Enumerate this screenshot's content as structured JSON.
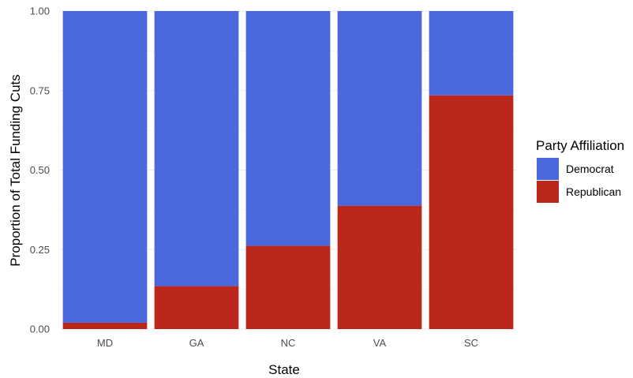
{
  "chart_data": {
    "type": "bar",
    "stacked": true,
    "categories": [
      "MD",
      "GA",
      "NC",
      "VA",
      "SC"
    ],
    "series": [
      {
        "name": "Republican",
        "color": "#bb271a",
        "values": [
          0.02,
          0.135,
          0.262,
          0.388,
          0.735
        ]
      },
      {
        "name": "Democrat",
        "color": "#4a68db",
        "values": [
          0.98,
          0.865,
          0.738,
          0.612,
          0.265
        ]
      }
    ],
    "xlabel": "State",
    "ylabel": "Proportion of Total Funding Cuts",
    "ylim": [
      0,
      1
    ],
    "yticks": [
      "0.00",
      "0.25",
      "0.50",
      "0.75",
      "1.00"
    ],
    "grid": true,
    "legend": {
      "title": "Party Affiliation",
      "placement": "right",
      "entries": [
        {
          "label": "Democrat",
          "color": "#4a68db"
        },
        {
          "label": "Republican",
          "color": "#bb271a"
        }
      ]
    }
  }
}
